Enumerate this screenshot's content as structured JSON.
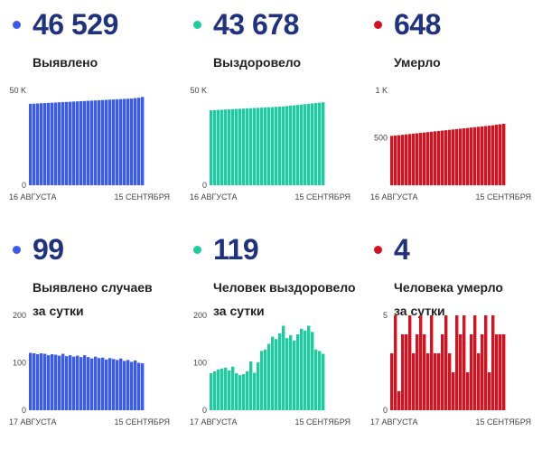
{
  "panels": [
    {
      "color": "#3a5bf0",
      "value": "46 529",
      "label_lines": [
        "Выявлено"
      ],
      "chart_data": {
        "type": "bar",
        "x_start": "16 АВГУСТА",
        "x_end": "15 СЕНТЯБРЯ",
        "yticks": [
          {
            "v": 0,
            "label": "0"
          },
          {
            "v": 50000,
            "label": "50 K"
          }
        ],
        "ylim": [
          0,
          50000
        ],
        "values": [
          42900,
          43000,
          43100,
          43200,
          43300,
          43400,
          43500,
          43600,
          43700,
          43800,
          43900,
          44000,
          44100,
          44200,
          44300,
          44400,
          44500,
          44600,
          44700,
          44800,
          44900,
          45000,
          45100,
          45200,
          45300,
          45400,
          45500,
          45600,
          45700,
          45900,
          46100,
          46529
        ]
      }
    },
    {
      "color": "#1fcaa0",
      "value": "43 678",
      "label_lines": [
        "Выздоровело"
      ],
      "chart_data": {
        "type": "bar",
        "x_start": "16 АВГУСТА",
        "x_end": "15 СЕНТЯБРЯ",
        "yticks": [
          {
            "v": 0,
            "label": "0"
          },
          {
            "v": 50000,
            "label": "50 K"
          }
        ],
        "ylim": [
          0,
          50000
        ],
        "values": [
          39500,
          39600,
          39700,
          39800,
          39900,
          40000,
          40100,
          40200,
          40300,
          40400,
          40500,
          40600,
          40700,
          40800,
          40900,
          41000,
          41100,
          41200,
          41300,
          41400,
          41500,
          41700,
          41900,
          42100,
          42300,
          42500,
          42700,
          42900,
          43100,
          43300,
          43500,
          43678
        ]
      }
    },
    {
      "color": "#d51320",
      "value": "648",
      "label_lines": [
        "Умерло"
      ],
      "chart_data": {
        "type": "bar",
        "x_start": "16 АВГУСТА",
        "x_end": "15 СЕНТЯБРЯ",
        "yticks": [
          {
            "v": 0,
            "label": ""
          },
          {
            "v": 500,
            "label": "500"
          },
          {
            "v": 1000,
            "label": "1 K"
          }
        ],
        "ylim": [
          0,
          1000
        ],
        "values": [
          520,
          524,
          528,
          532,
          536,
          540,
          544,
          548,
          552,
          556,
          560,
          564,
          568,
          572,
          576,
          580,
          584,
          588,
          592,
          596,
          600,
          604,
          608,
          612,
          616,
          620,
          624,
          628,
          632,
          638,
          643,
          648
        ]
      }
    },
    {
      "color": "#3a5bf0",
      "value": "99",
      "label_lines": [
        "Выявлено случаев",
        "за сутки"
      ],
      "chart_data": {
        "type": "bar",
        "x_start": "17 АВГУСТА",
        "x_end": "15 СЕНТЯБРЯ",
        "yticks": [
          {
            "v": 0,
            "label": "0"
          },
          {
            "v": 100,
            "label": "100"
          },
          {
            "v": 200,
            "label": "200"
          }
        ],
        "ylim": [
          0,
          200
        ],
        "values": [
          121,
          120,
          118,
          120,
          119,
          116,
          118,
          117,
          115,
          119,
          114,
          116,
          113,
          115,
          112,
          116,
          112,
          109,
          113,
          110,
          111,
          107,
          110,
          108,
          106,
          109,
          104,
          106,
          102,
          105,
          100,
          99
        ]
      }
    },
    {
      "color": "#1fcaa0",
      "value": "119",
      "label_lines": [
        "Человек выздоровело",
        "за сутки"
      ],
      "chart_data": {
        "type": "bar",
        "x_start": "17 АВГУСТА",
        "x_end": "15 СЕНТЯБРЯ",
        "yticks": [
          {
            "v": 0,
            "label": "0"
          },
          {
            "v": 100,
            "label": "100"
          },
          {
            "v": 200,
            "label": "200"
          }
        ],
        "ylim": [
          0,
          200
        ],
        "values": [
          78,
          82,
          86,
          88,
          90,
          84,
          92,
          78,
          74,
          76,
          82,
          103,
          79,
          101,
          125,
          128,
          140,
          155,
          150,
          162,
          178,
          152,
          158,
          147,
          160,
          172,
          168,
          178,
          165,
          128,
          125,
          119
        ]
      }
    },
    {
      "color": "#d51320",
      "value": "4",
      "label_lines": [
        "Человека умерло",
        "за сутки"
      ],
      "chart_data": {
        "type": "bar",
        "x_start": "17 АВГУСТА",
        "x_end": "15 СЕНТЯБРЯ",
        "yticks": [
          {
            "v": 0,
            "label": "0"
          },
          {
            "v": 5,
            "label": "5"
          }
        ],
        "ylim": [
          0,
          5
        ],
        "values": [
          3,
          5,
          1,
          4,
          4,
          5,
          3,
          4,
          5,
          4,
          3,
          5,
          3,
          3,
          4,
          5,
          3,
          2,
          5,
          4,
          5,
          2,
          4,
          5,
          3,
          4,
          5,
          2,
          5,
          4,
          4,
          4
        ]
      }
    }
  ]
}
